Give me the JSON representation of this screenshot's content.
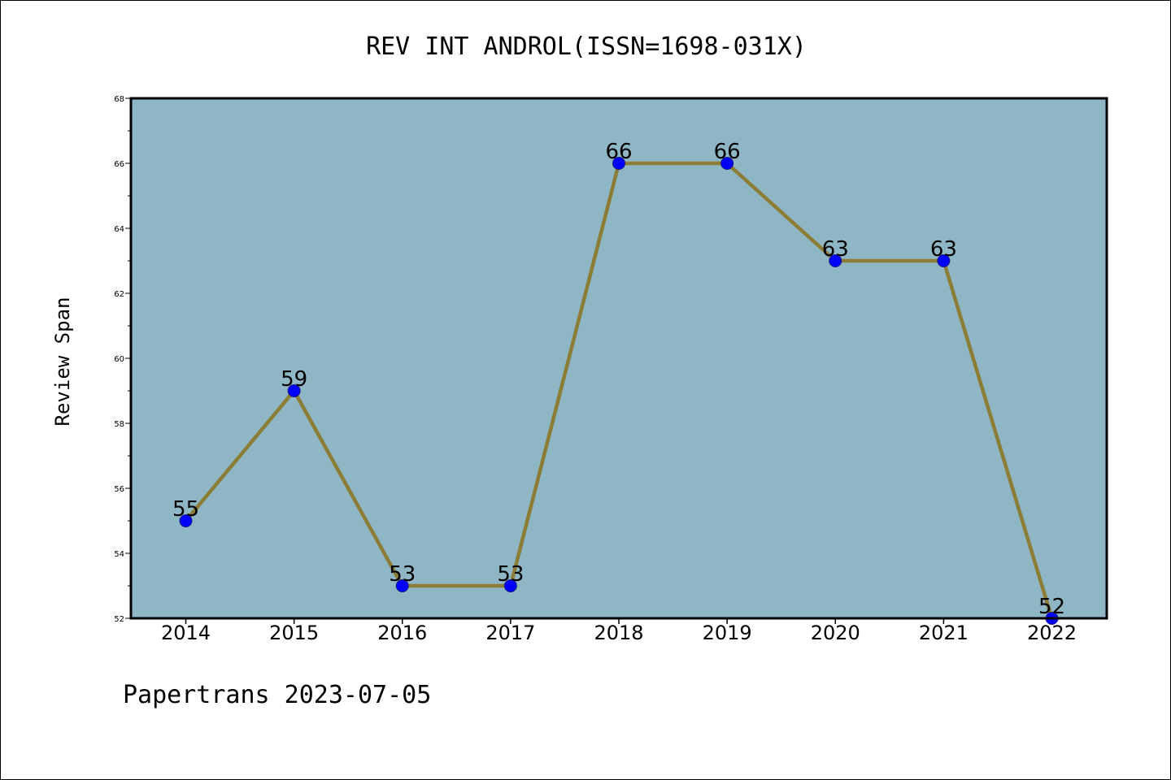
{
  "chart_data": {
    "type": "line",
    "title": "REV INT ANDROL(ISSN=1698-031X)",
    "xlabel": "",
    "ylabel": "Review Span",
    "categories": [
      "2014",
      "2015",
      "2016",
      "2017",
      "2018",
      "2019",
      "2020",
      "2021",
      "2022"
    ],
    "series": [
      {
        "values": [
          55,
          59,
          53,
          53,
          66,
          66,
          63,
          63,
          52
        ]
      }
    ],
    "ylim": [
      52,
      68
    ],
    "yticks": [
      52,
      54,
      56,
      58,
      60,
      62,
      64,
      66,
      68
    ],
    "grid": false,
    "data_labels": true
  },
  "footer": {
    "text": "Papertrans 2023-07-05"
  },
  "colors": {
    "plot_background": "#8fb6c4",
    "line": "#8b7d35",
    "marker": "#0000ff",
    "marker_edge": "#1a1a80",
    "axes": "#000000"
  }
}
